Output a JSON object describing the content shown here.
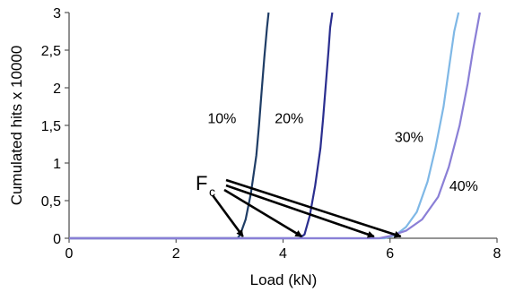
{
  "chart_data": {
    "type": "line",
    "title": "",
    "xlabel": "Load (kN)",
    "ylabel": "Cumulated hits  x 10000",
    "xlim": [
      0,
      8
    ],
    "ylim": [
      0,
      3
    ],
    "x_ticks": [
      "0",
      "2",
      "4",
      "6",
      "8"
    ],
    "y_ticks": [
      "0",
      "0,5",
      "1",
      "1,5",
      "2",
      "2,5",
      "3"
    ],
    "grid": false,
    "series": [
      {
        "name": "10%",
        "color": "#1f3d66",
        "x": [
          0,
          3.15,
          3.2,
          3.3,
          3.4,
          3.5,
          3.55,
          3.6,
          3.65,
          3.7,
          3.73
        ],
        "y": [
          0,
          0,
          0.05,
          0.25,
          0.6,
          1.1,
          1.5,
          1.95,
          2.4,
          2.8,
          3.0
        ]
      },
      {
        "name": "20%",
        "color": "#2a2e8f",
        "x": [
          0,
          4.3,
          4.4,
          4.5,
          4.6,
          4.7,
          4.75,
          4.8,
          4.85,
          4.88,
          4.92
        ],
        "y": [
          0,
          0,
          0.05,
          0.3,
          0.7,
          1.2,
          1.6,
          2.05,
          2.5,
          2.8,
          3.0
        ]
      },
      {
        "name": "30%",
        "color": "#7fb8e6",
        "x": [
          0,
          5.9,
          6.1,
          6.3,
          6.5,
          6.7,
          6.85,
          7.0,
          7.1,
          7.2,
          7.28
        ],
        "y": [
          0,
          0,
          0.04,
          0.15,
          0.35,
          0.75,
          1.2,
          1.75,
          2.25,
          2.75,
          3.0
        ]
      },
      {
        "name": "40%",
        "color": "#8a7fd6",
        "x": [
          0,
          5.8,
          6.0,
          6.3,
          6.6,
          6.9,
          7.1,
          7.3,
          7.45,
          7.55,
          7.68
        ],
        "y": [
          0,
          0,
          0.03,
          0.1,
          0.25,
          0.55,
          0.95,
          1.5,
          2.05,
          2.5,
          3.0
        ]
      }
    ],
    "annotations": [
      {
        "text": "F",
        "subscript": "c",
        "arrows_to_x": [
          3.25,
          4.35,
          5.7,
          6.2
        ]
      }
    ]
  }
}
